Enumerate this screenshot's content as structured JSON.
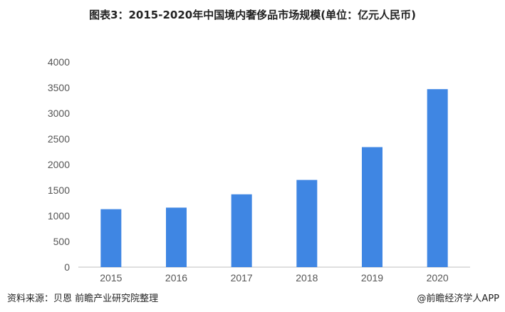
{
  "title": "图表3：2015-2020年中国境内奢侈品市场规模(单位：亿元人民币)",
  "source": "资料来源：贝恩 前瞻产业研究院整理",
  "credit": "@前瞻经济学人APP",
  "colors": {
    "bar": "#3f86e3",
    "axis": "#bfbfbf"
  },
  "chart_data": {
    "type": "bar",
    "categories": [
      "2015",
      "2016",
      "2017",
      "2018",
      "2019",
      "2020"
    ],
    "values": [
      1130,
      1160,
      1420,
      1700,
      2340,
      3470
    ],
    "ylim": [
      0,
      4000
    ],
    "yticks": [
      0,
      500,
      1000,
      1500,
      2000,
      2500,
      3000,
      3500,
      4000
    ],
    "grid": false,
    "legend": "none"
  }
}
